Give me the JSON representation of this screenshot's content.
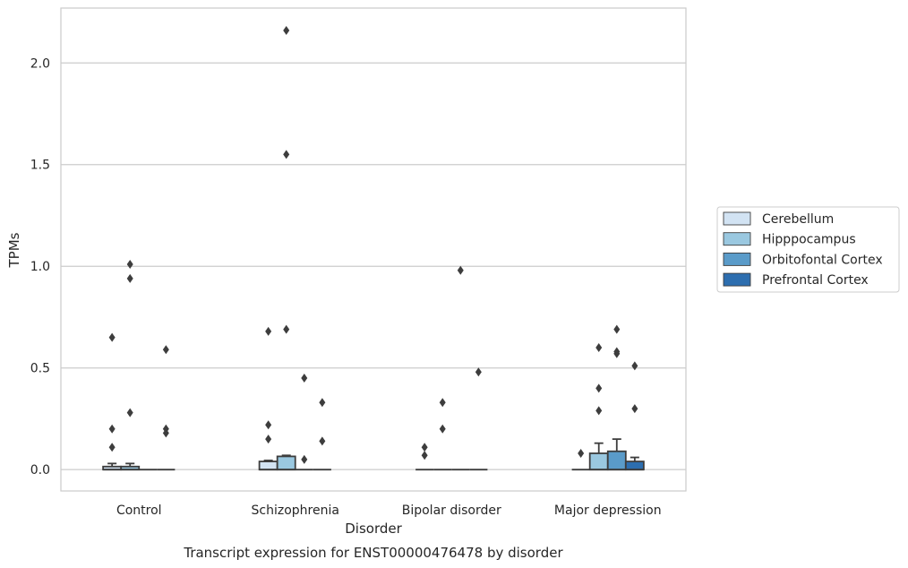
{
  "chart_data": {
    "type": "boxplot",
    "title": "",
    "caption": "Transcript expression for ENST00000476478 by disorder",
    "xlabel": "Disorder",
    "ylabel": "TPMs",
    "ylim": [
      -0.105,
      2.27
    ],
    "yticks": [
      0.0,
      0.5,
      1.0,
      1.5,
      2.0
    ],
    "ytick_labels": [
      "0.0",
      "0.5",
      "1.0",
      "1.5",
      "2.0"
    ],
    "grid": "horizontal",
    "legend_position": "right",
    "categories": [
      "Control",
      "Schizophrenia",
      "Bipolar disorder",
      "Major depression"
    ],
    "series": [
      {
        "name": "Cerebellum",
        "color": "#d2e3f3",
        "boxes": [
          {
            "q1": 0.0,
            "median": 0.0,
            "q3": 0.015,
            "whisker_low": 0.0,
            "whisker_high": 0.03,
            "outliers": [
              0.11,
              0.2,
              0.65
            ]
          },
          {
            "q1": 0.0,
            "median": 0.0,
            "q3": 0.04,
            "whisker_low": 0.0,
            "whisker_high": 0.045,
            "outliers": [
              0.15,
              0.22,
              0.68
            ]
          },
          {
            "q1": 0.0,
            "median": 0.0,
            "q3": 0.0,
            "whisker_low": 0.0,
            "whisker_high": 0.0,
            "outliers": [
              0.07,
              0.11
            ]
          },
          {
            "q1": 0.0,
            "median": 0.0,
            "q3": 0.0,
            "whisker_low": 0.0,
            "whisker_high": 0.0,
            "outliers": [
              0.08
            ]
          }
        ]
      },
      {
        "name": "Hipppocampus",
        "color": "#9ac8e0",
        "boxes": [
          {
            "q1": 0.0,
            "median": 0.0,
            "q3": 0.015,
            "whisker_low": 0.0,
            "whisker_high": 0.03,
            "outliers": [
              0.28,
              0.94,
              1.01
            ]
          },
          {
            "q1": 0.0,
            "median": 0.0,
            "q3": 0.065,
            "whisker_low": 0.0,
            "whisker_high": 0.07,
            "outliers": [
              0.69,
              1.55,
              2.16
            ]
          },
          {
            "q1": 0.0,
            "median": 0.0,
            "q3": 0.0,
            "whisker_low": 0.0,
            "whisker_high": 0.0,
            "outliers": [
              0.2,
              0.33
            ]
          },
          {
            "q1": 0.0,
            "median": 0.0,
            "q3": 0.08,
            "whisker_low": 0.0,
            "whisker_high": 0.13,
            "outliers": [
              0.29,
              0.4,
              0.6
            ]
          }
        ]
      },
      {
        "name": "Orbitofontal Cortex",
        "color": "#5a9bc9",
        "boxes": [
          {
            "q1": 0.0,
            "median": 0.0,
            "q3": 0.0,
            "whisker_low": 0.0,
            "whisker_high": 0.0,
            "outliers": []
          },
          {
            "q1": 0.0,
            "median": 0.0,
            "q3": 0.0,
            "whisker_low": 0.0,
            "whisker_high": 0.0,
            "outliers": [
              0.05,
              0.45
            ]
          },
          {
            "q1": 0.0,
            "median": 0.0,
            "q3": 0.0,
            "whisker_low": 0.0,
            "whisker_high": 0.0,
            "outliers": [
              0.98
            ]
          },
          {
            "q1": 0.0,
            "median": 0.0,
            "q3": 0.09,
            "whisker_low": 0.0,
            "whisker_high": 0.15,
            "outliers": [
              0.57,
              0.58,
              0.69
            ]
          }
        ]
      },
      {
        "name": "Prefrontal Cortex",
        "color": "#2d6eaf",
        "boxes": [
          {
            "q1": 0.0,
            "median": 0.0,
            "q3": 0.0,
            "whisker_low": 0.0,
            "whisker_high": 0.0,
            "outliers": [
              0.18,
              0.2,
              0.59
            ]
          },
          {
            "q1": 0.0,
            "median": 0.0,
            "q3": 0.0,
            "whisker_low": 0.0,
            "whisker_high": 0.0,
            "outliers": [
              0.14,
              0.33
            ]
          },
          {
            "q1": 0.0,
            "median": 0.0,
            "q3": 0.0,
            "whisker_low": 0.0,
            "whisker_high": 0.0,
            "outliers": [
              0.48
            ]
          },
          {
            "q1": 0.0,
            "median": 0.0,
            "q3": 0.04,
            "whisker_low": 0.0,
            "whisker_high": 0.06,
            "outliers": [
              0.3,
              0.51
            ]
          }
        ]
      }
    ]
  }
}
